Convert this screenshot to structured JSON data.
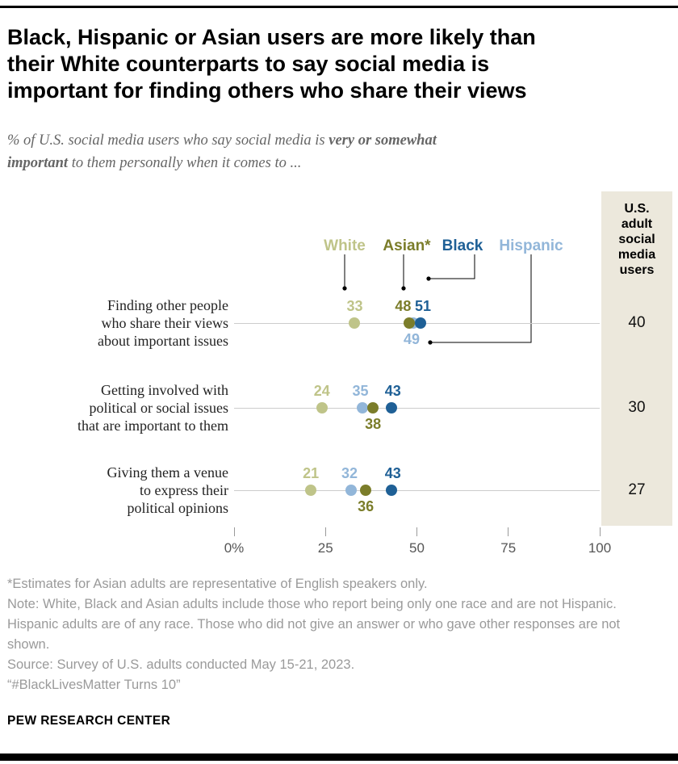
{
  "page": {
    "title_lines": [
      "Black, Hispanic or Asian users are more likely than",
      "their White counterparts to say social media is",
      "important for finding others who share their views"
    ],
    "subtitle": {
      "line1_regular": "% of U.S. social media users who say social media is ",
      "line1_bold": "very or somewhat",
      "line2_bold": "important",
      "line2_regular": " to them personally when it comes to ..."
    },
    "footnotes": [
      "*Estimates for Asian adults are representative of English speakers only.",
      "Note: White, Black and Asian adults include those who report being only one race and are not Hispanic. Hispanic adults are of any race. Those who did not give an answer or who gave other responses are not shown.",
      "Source: Survey of U.S. adults conducted May 15-21, 2023.",
      "“#BlackLivesMatter Turns 10”"
    ],
    "footer": "PEW RESEARCH CENTER"
  },
  "chart_data": {
    "type": "scatter",
    "variant": "dot-plot",
    "title": "Black, Hispanic or Asian users are more likely than their White counterparts to say social media is important for finding others who share their views",
    "subtitle": "% of U.S. social media users who say social media is very or somewhat important to them personally when it comes to ...",
    "legend_position": "top",
    "legend": [
      {
        "id": "white",
        "label": "White",
        "color": "#bfc489"
      },
      {
        "id": "asian",
        "label": "Asian*",
        "color": "#7b7d2a"
      },
      {
        "id": "black",
        "label": "Black",
        "color": "#1f6096"
      },
      {
        "id": "hispanic",
        "label": "Hispanic",
        "color": "#92b6d9"
      }
    ],
    "x_axis": {
      "min": 0,
      "max": 100,
      "grid": false,
      "ticks": [
        {
          "label": "0%",
          "value": 0
        },
        {
          "label": "25",
          "value": 25
        },
        {
          "label": "50",
          "value": 50
        },
        {
          "label": "75",
          "value": 75
        },
        {
          "label": "100",
          "value": 100
        }
      ]
    },
    "right_column": {
      "header_lines": [
        "U.S.",
        "adult",
        "social",
        "media",
        "users"
      ],
      "background": "#ece8dc"
    },
    "rows": [
      {
        "label_lines": [
          "Finding other people",
          "who share their views",
          "about important issues"
        ],
        "us_value": 40,
        "points": [
          {
            "group": "white",
            "value": 33,
            "label_side": "above",
            "label_dx": 0
          },
          {
            "group": "hispanic",
            "value": 49,
            "label_side": "below",
            "label_dx": -2
          },
          {
            "group": "asian",
            "value": 48,
            "label_side": "above",
            "label_dx": -8
          },
          {
            "group": "black",
            "value": 51,
            "label_side": "above",
            "label_dx": 3
          }
        ]
      },
      {
        "label_lines": [
          "Getting involved with",
          "political or social issues",
          "that are important to them"
        ],
        "us_value": 30,
        "points": [
          {
            "group": "white",
            "value": 24,
            "label_side": "above",
            "label_dx": 0
          },
          {
            "group": "hispanic",
            "value": 35,
            "label_side": "above",
            "label_dx": -2
          },
          {
            "group": "asian",
            "value": 38,
            "label_side": "below",
            "label_dx": 0
          },
          {
            "group": "black",
            "value": 43,
            "label_side": "above",
            "label_dx": 2
          }
        ]
      },
      {
        "label_lines": [
          "Giving them a venue",
          "to express their",
          "political opinions"
        ],
        "us_value": 27,
        "points": [
          {
            "group": "white",
            "value": 21,
            "label_side": "above",
            "label_dx": 0
          },
          {
            "group": "hispanic",
            "value": 32,
            "label_side": "above",
            "label_dx": -2
          },
          {
            "group": "asian",
            "value": 36,
            "label_side": "below",
            "label_dx": 0
          },
          {
            "group": "black",
            "value": 43,
            "label_side": "above",
            "label_dx": 2
          }
        ]
      }
    ]
  }
}
